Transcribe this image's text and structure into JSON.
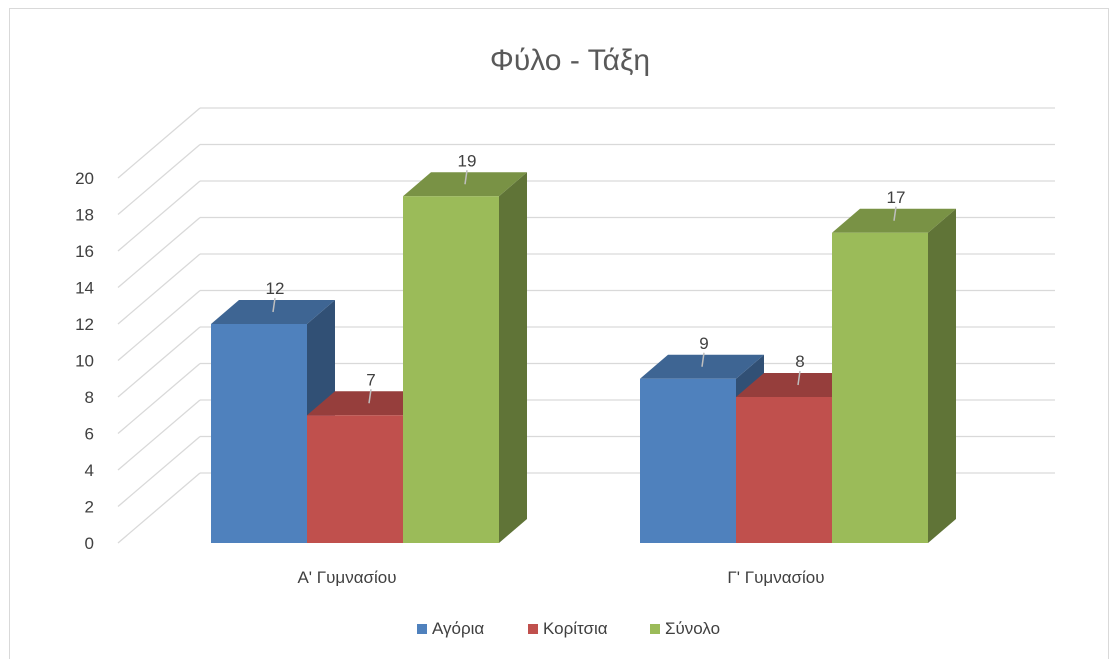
{
  "chart_data": {
    "type": "bar",
    "title": "Φύλο - Τάξη",
    "categories": [
      "Α' Γυμνασίου",
      "Γ' Γυμνασίου"
    ],
    "series": [
      {
        "name": "Αγόρια",
        "values": [
          12,
          9
        ],
        "color": "#4f81bd"
      },
      {
        "name": "Κορίτσια",
        "values": [
          7,
          8
        ],
        "color": "#c0504d"
      },
      {
        "name": "Σύνολο",
        "values": [
          19,
          17
        ],
        "color": "#9bbb59"
      }
    ],
    "ylim": [
      0,
      20
    ],
    "yticks": [
      0,
      2,
      4,
      6,
      8,
      10,
      12,
      14,
      16,
      18,
      20
    ],
    "grid": true,
    "style": "3d-clustered-column",
    "legend_position": "bottom"
  }
}
